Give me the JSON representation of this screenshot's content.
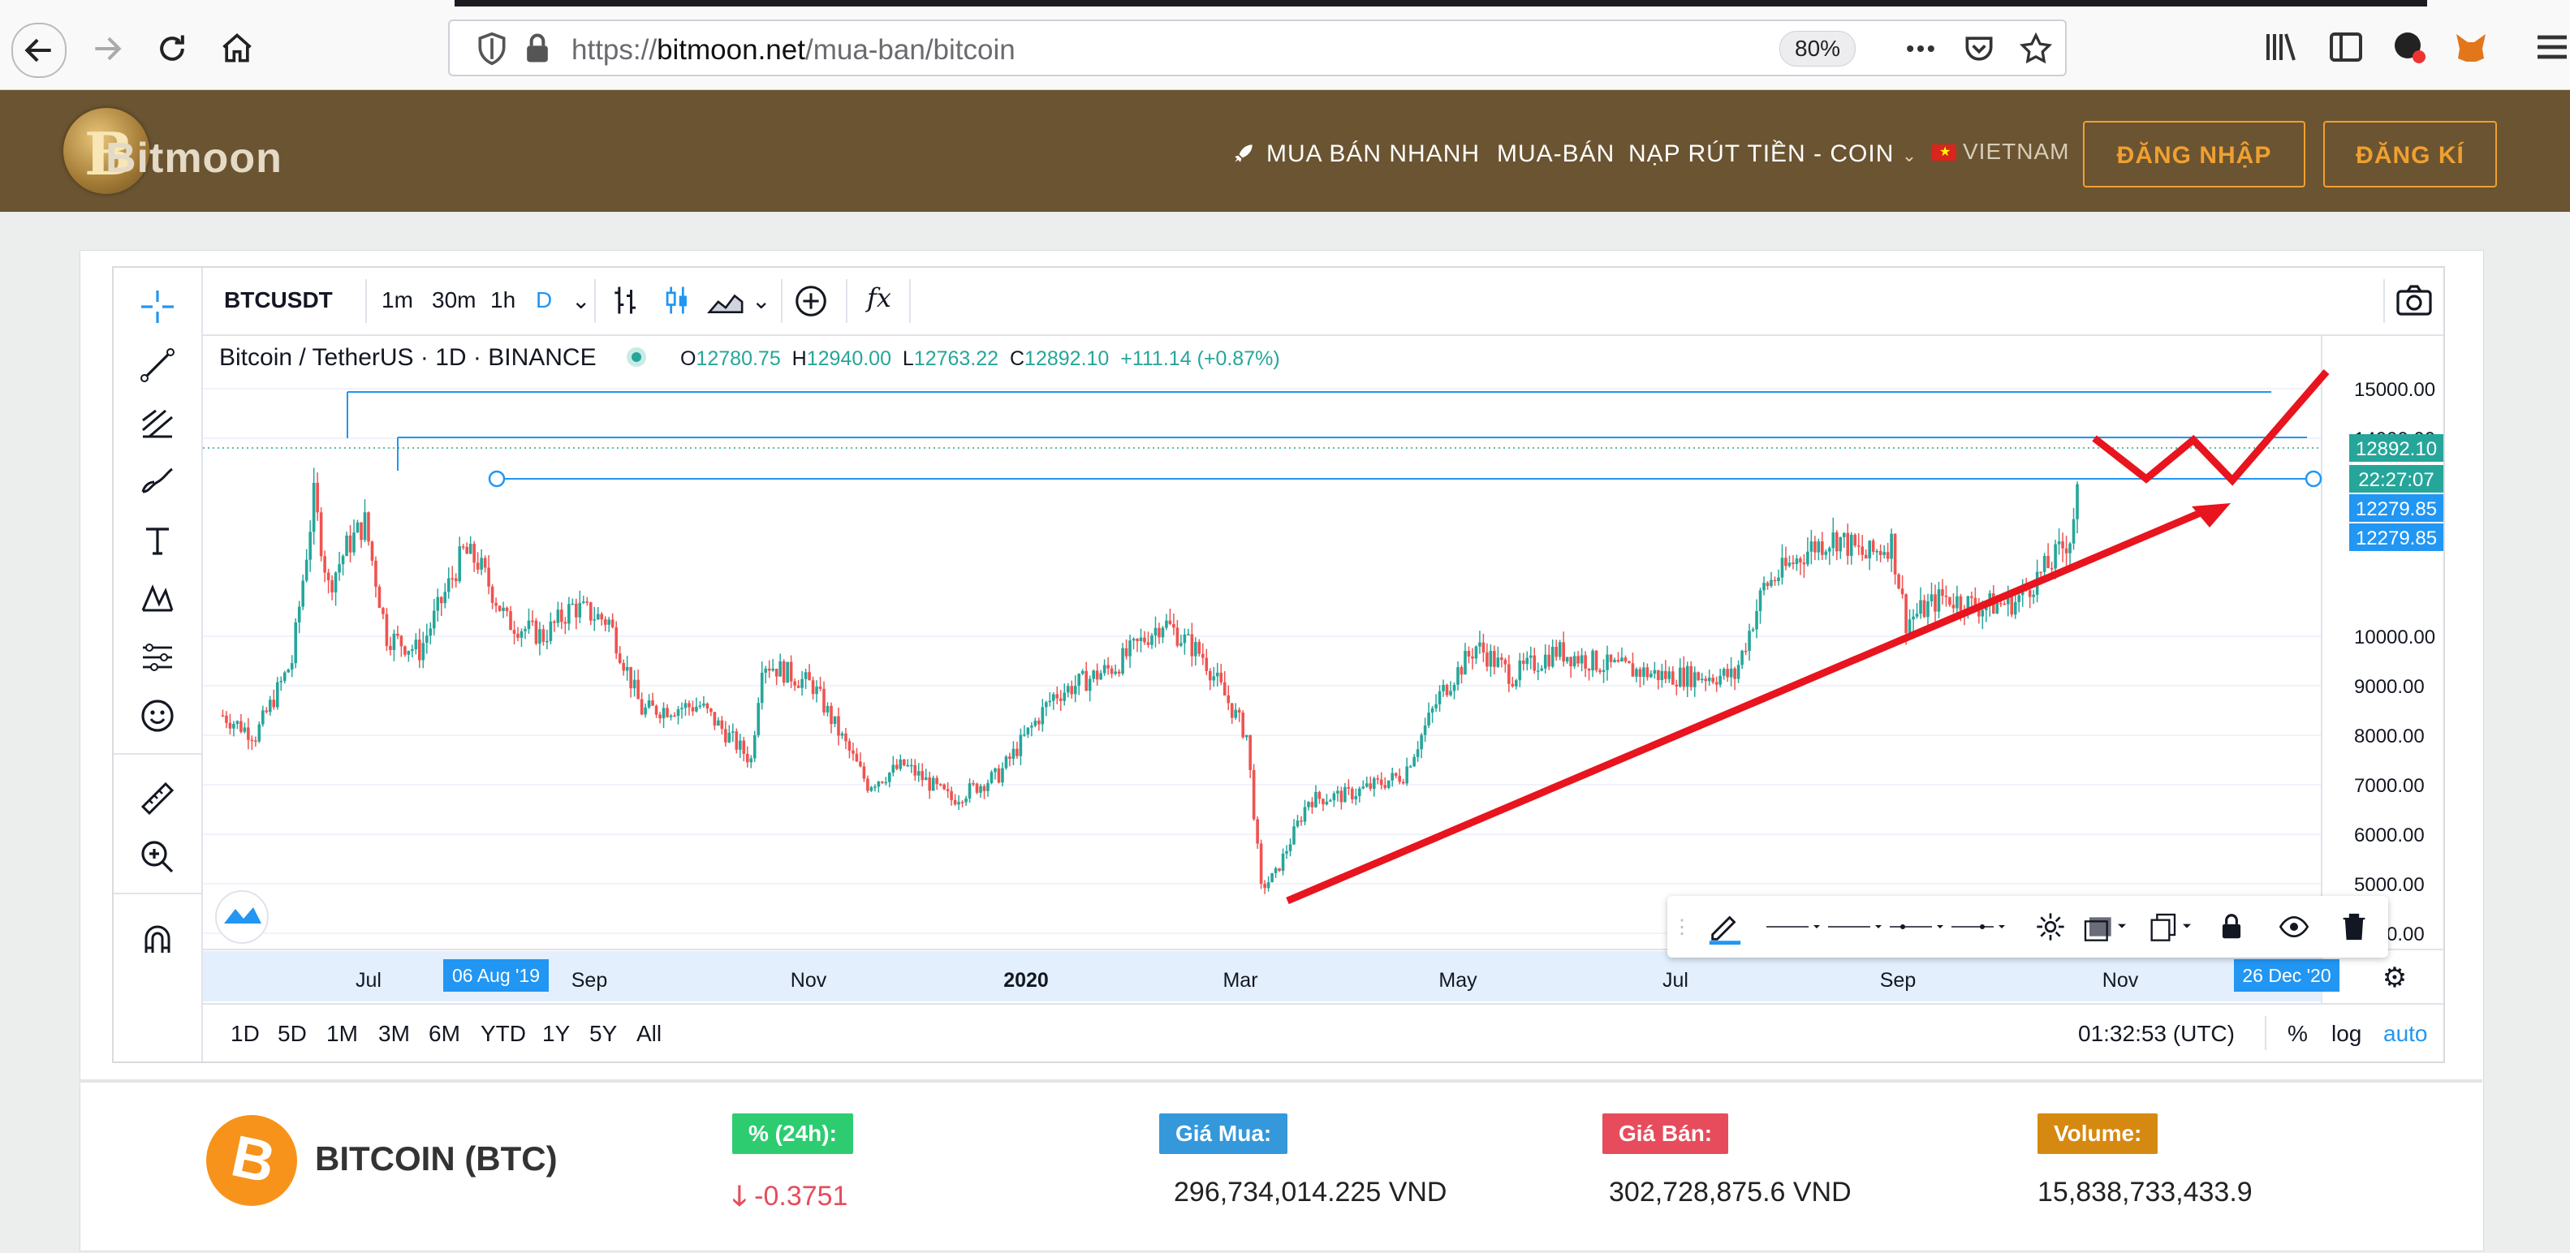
{
  "browser": {
    "url_prefix": "https://",
    "url_domain": "bitmoon.net",
    "url_path": "/mua-ban/bitcoin",
    "zoom": "80%"
  },
  "site": {
    "logo_text": "Bitmoon",
    "menu": {
      "quick_trade": "MUA BÁN NHANH",
      "trade": "MUA-BÁN",
      "deposit": "NẠP RÚT TIỀN - COIN",
      "language": "VIETNAM"
    },
    "login": "ĐĂNG NHẬP",
    "register": "ĐĂNG KÍ"
  },
  "chart_toolbar": {
    "symbol": "BTCUSDT",
    "intervals": [
      "1m",
      "30m",
      "1h",
      "D"
    ],
    "fx": "fx"
  },
  "legend": {
    "title": "Bitcoin / TetherUS · 1D · BINANCE",
    "o_label": "O",
    "o": "12780.75",
    "h_label": "H",
    "h": "12940.00",
    "l_label": "L",
    "l": "12763.22",
    "c_label": "C",
    "c": "12892.10",
    "change": "+111.14 (+0.87%)"
  },
  "chart_data": {
    "type": "candlestick",
    "symbol": "BTCUSDT",
    "exchange": "BINANCE",
    "interval": "1D",
    "y_ticks": [
      4000,
      5000,
      6000,
      7000,
      8000,
      9000,
      10000,
      14000,
      15000
    ],
    "y_tick_labels": [
      "4000.00",
      "5000.00",
      "6000.00",
      "7000.00",
      "8000.00",
      "9000.00",
      "10000.00",
      "14000.00",
      "15000.00"
    ],
    "x_tick_labels": [
      "Jul",
      "Sep",
      "Nov",
      "2020",
      "Mar",
      "May",
      "Jul",
      "Sep",
      "Nov"
    ],
    "x_highlight_left": "06 Aug '19",
    "x_highlight_right": "26 Dec '20",
    "price_labels": [
      {
        "value": "12892.10",
        "color": "#26a69a"
      },
      {
        "value": "22:27:07",
        "color": "#26a69a"
      },
      {
        "value": "12279.85",
        "color": "#2196f3"
      },
      {
        "value": "12279.85",
        "color": "#2196f3"
      }
    ],
    "series": [
      {
        "name": "Bitcoin / TetherUS",
        "close_path": [
          [
            "2019-06-01",
            8400
          ],
          [
            "2019-06-10",
            8000
          ],
          [
            "2019-06-20",
            9500
          ],
          [
            "2019-06-26",
            12800
          ],
          [
            "2019-06-30",
            11000
          ],
          [
            "2019-07-05",
            11800
          ],
          [
            "2019-07-10",
            12300
          ],
          [
            "2019-07-16",
            10000
          ],
          [
            "2019-07-25",
            9700
          ],
          [
            "2019-08-06",
            11700
          ],
          [
            "2019-08-10",
            11500
          ],
          [
            "2019-08-18",
            10300
          ],
          [
            "2019-08-28",
            10000
          ],
          [
            "2019-09-05",
            10600
          ],
          [
            "2019-09-15",
            10300
          ],
          [
            "2019-09-24",
            8500
          ],
          [
            "2019-10-10",
            8600
          ],
          [
            "2019-10-24",
            7500
          ],
          [
            "2019-10-27",
            9500
          ],
          [
            "2019-11-10",
            9000
          ],
          [
            "2019-11-25",
            7000
          ],
          [
            "2019-12-05",
            7400
          ],
          [
            "2019-12-18",
            6700
          ],
          [
            "2019-12-31",
            7200
          ],
          [
            "2020-01-15",
            8800
          ],
          [
            "2020-02-01",
            9400
          ],
          [
            "2020-02-14",
            10300
          ],
          [
            "2020-02-25",
            9600
          ],
          [
            "2020-03-08",
            8000
          ],
          [
            "2020-03-12",
            4900
          ],
          [
            "2020-03-16",
            5200
          ],
          [
            "2020-03-25",
            6700
          ],
          [
            "2020-04-05",
            6800
          ],
          [
            "2020-04-20",
            7200
          ],
          [
            "2020-04-30",
            8800
          ],
          [
            "2020-05-10",
            9800
          ],
          [
            "2020-05-20",
            9200
          ],
          [
            "2020-06-01",
            9700
          ],
          [
            "2020-06-15",
            9400
          ],
          [
            "2020-07-01",
            9200
          ],
          [
            "2020-07-20",
            9200
          ],
          [
            "2020-07-28",
            11000
          ],
          [
            "2020-08-10",
            11800
          ],
          [
            "2020-08-17",
            12000
          ],
          [
            "2020-08-25",
            11600
          ],
          [
            "2020-09-01",
            11900
          ],
          [
            "2020-09-05",
            10300
          ],
          [
            "2020-09-15",
            10800
          ],
          [
            "2020-09-25",
            10600
          ],
          [
            "2020-10-05",
            10700
          ],
          [
            "2020-10-15",
            11500
          ],
          [
            "2020-10-20",
            12000
          ],
          [
            "2020-10-22",
            12892
          ]
        ]
      }
    ]
  },
  "bottom_bar": {
    "ranges": [
      "1D",
      "5D",
      "1M",
      "3M",
      "6M",
      "YTD",
      "1Y",
      "5Y",
      "All"
    ],
    "time": "01:32:53 (UTC)",
    "percent": "%",
    "log": "log",
    "auto": "auto"
  },
  "stats": {
    "coin_name": "BITCOIN (BTC)",
    "change_label": "% (24h):",
    "change_value": "-0.3751",
    "buy_label": "Giá Mua:",
    "buy_value": "296,734,014.225 VND",
    "sell_label": "Giá Bán:",
    "sell_value": "302,728,875.6 VND",
    "volume_label": "Volume:",
    "volume_value": "15,838,733,433.9"
  },
  "colors": {
    "header_bg": "#6b5431",
    "accent_orange": "#f0a030",
    "up": "#26a69a",
    "down": "#ef5350",
    "drawing_line": "#2196f3",
    "arrow": "#e8141e",
    "badge_green": "#2ecc71",
    "badge_blue": "#3498db",
    "badge_red": "#e74c5c",
    "badge_gold": "#d68910"
  }
}
